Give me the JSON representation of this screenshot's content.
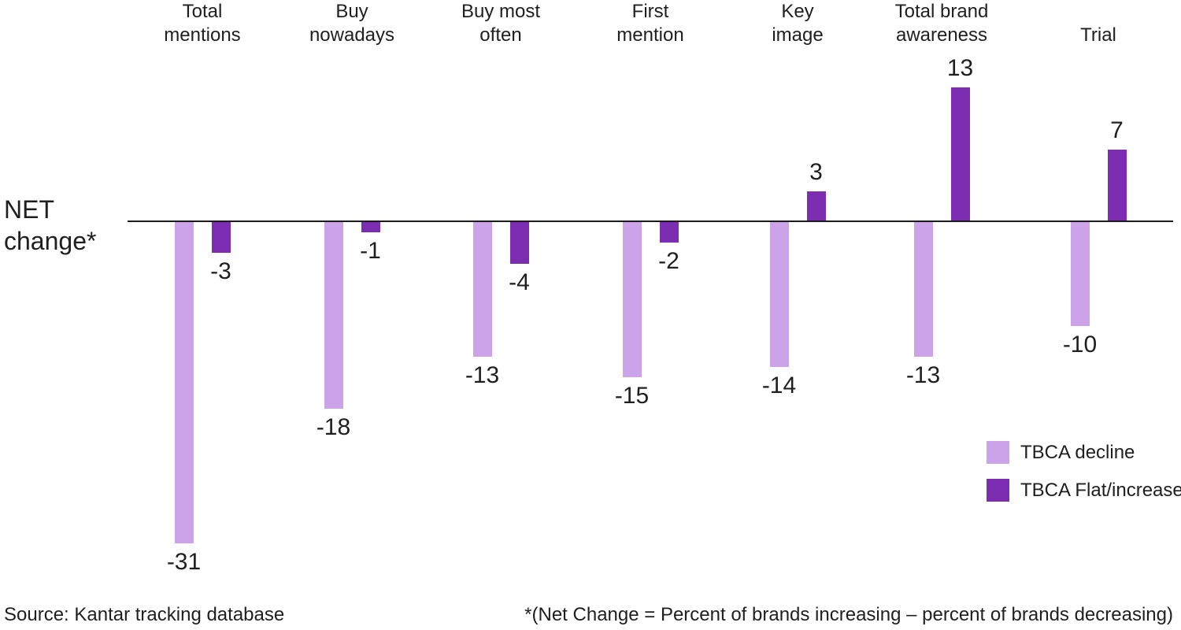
{
  "chart_data": {
    "type": "bar",
    "title": "",
    "axis_label": "NET\nchange*",
    "categories": [
      "Total\nmentions",
      "Buy\nnowadays",
      "Buy most\noften",
      "First\nmention",
      "Key\nimage",
      "Total brand\nawareness",
      "Trial"
    ],
    "series": [
      {
        "name": "TBCA decline",
        "color": "#CCA3E8",
        "values": [
          -31,
          -18,
          -13,
          -15,
          -14,
          -13,
          -10
        ]
      },
      {
        "name": "TBCA Flat/increase",
        "color": "#7D2DB2",
        "values": [
          -3,
          -1,
          -4,
          -2,
          3,
          13,
          7
        ]
      }
    ],
    "baseline": 0,
    "ylim": [
      -31,
      13
    ],
    "grid": false,
    "value_labels": true,
    "legend_position": "bottom-right"
  },
  "legend": {
    "items": [
      {
        "label": "TBCA decline",
        "color": "#CCA3E8"
      },
      {
        "label": "TBCA Flat/increase",
        "color": "#7D2DB2"
      }
    ]
  },
  "footer": {
    "source": "Source: Kantar tracking database",
    "footnote": "*(Net Change = Percent of brands increasing – percent of brands decreasing)"
  },
  "colors": {
    "axis_line": "#1a1a1a",
    "text": "#1f1f1f",
    "background": "#ffffff"
  }
}
